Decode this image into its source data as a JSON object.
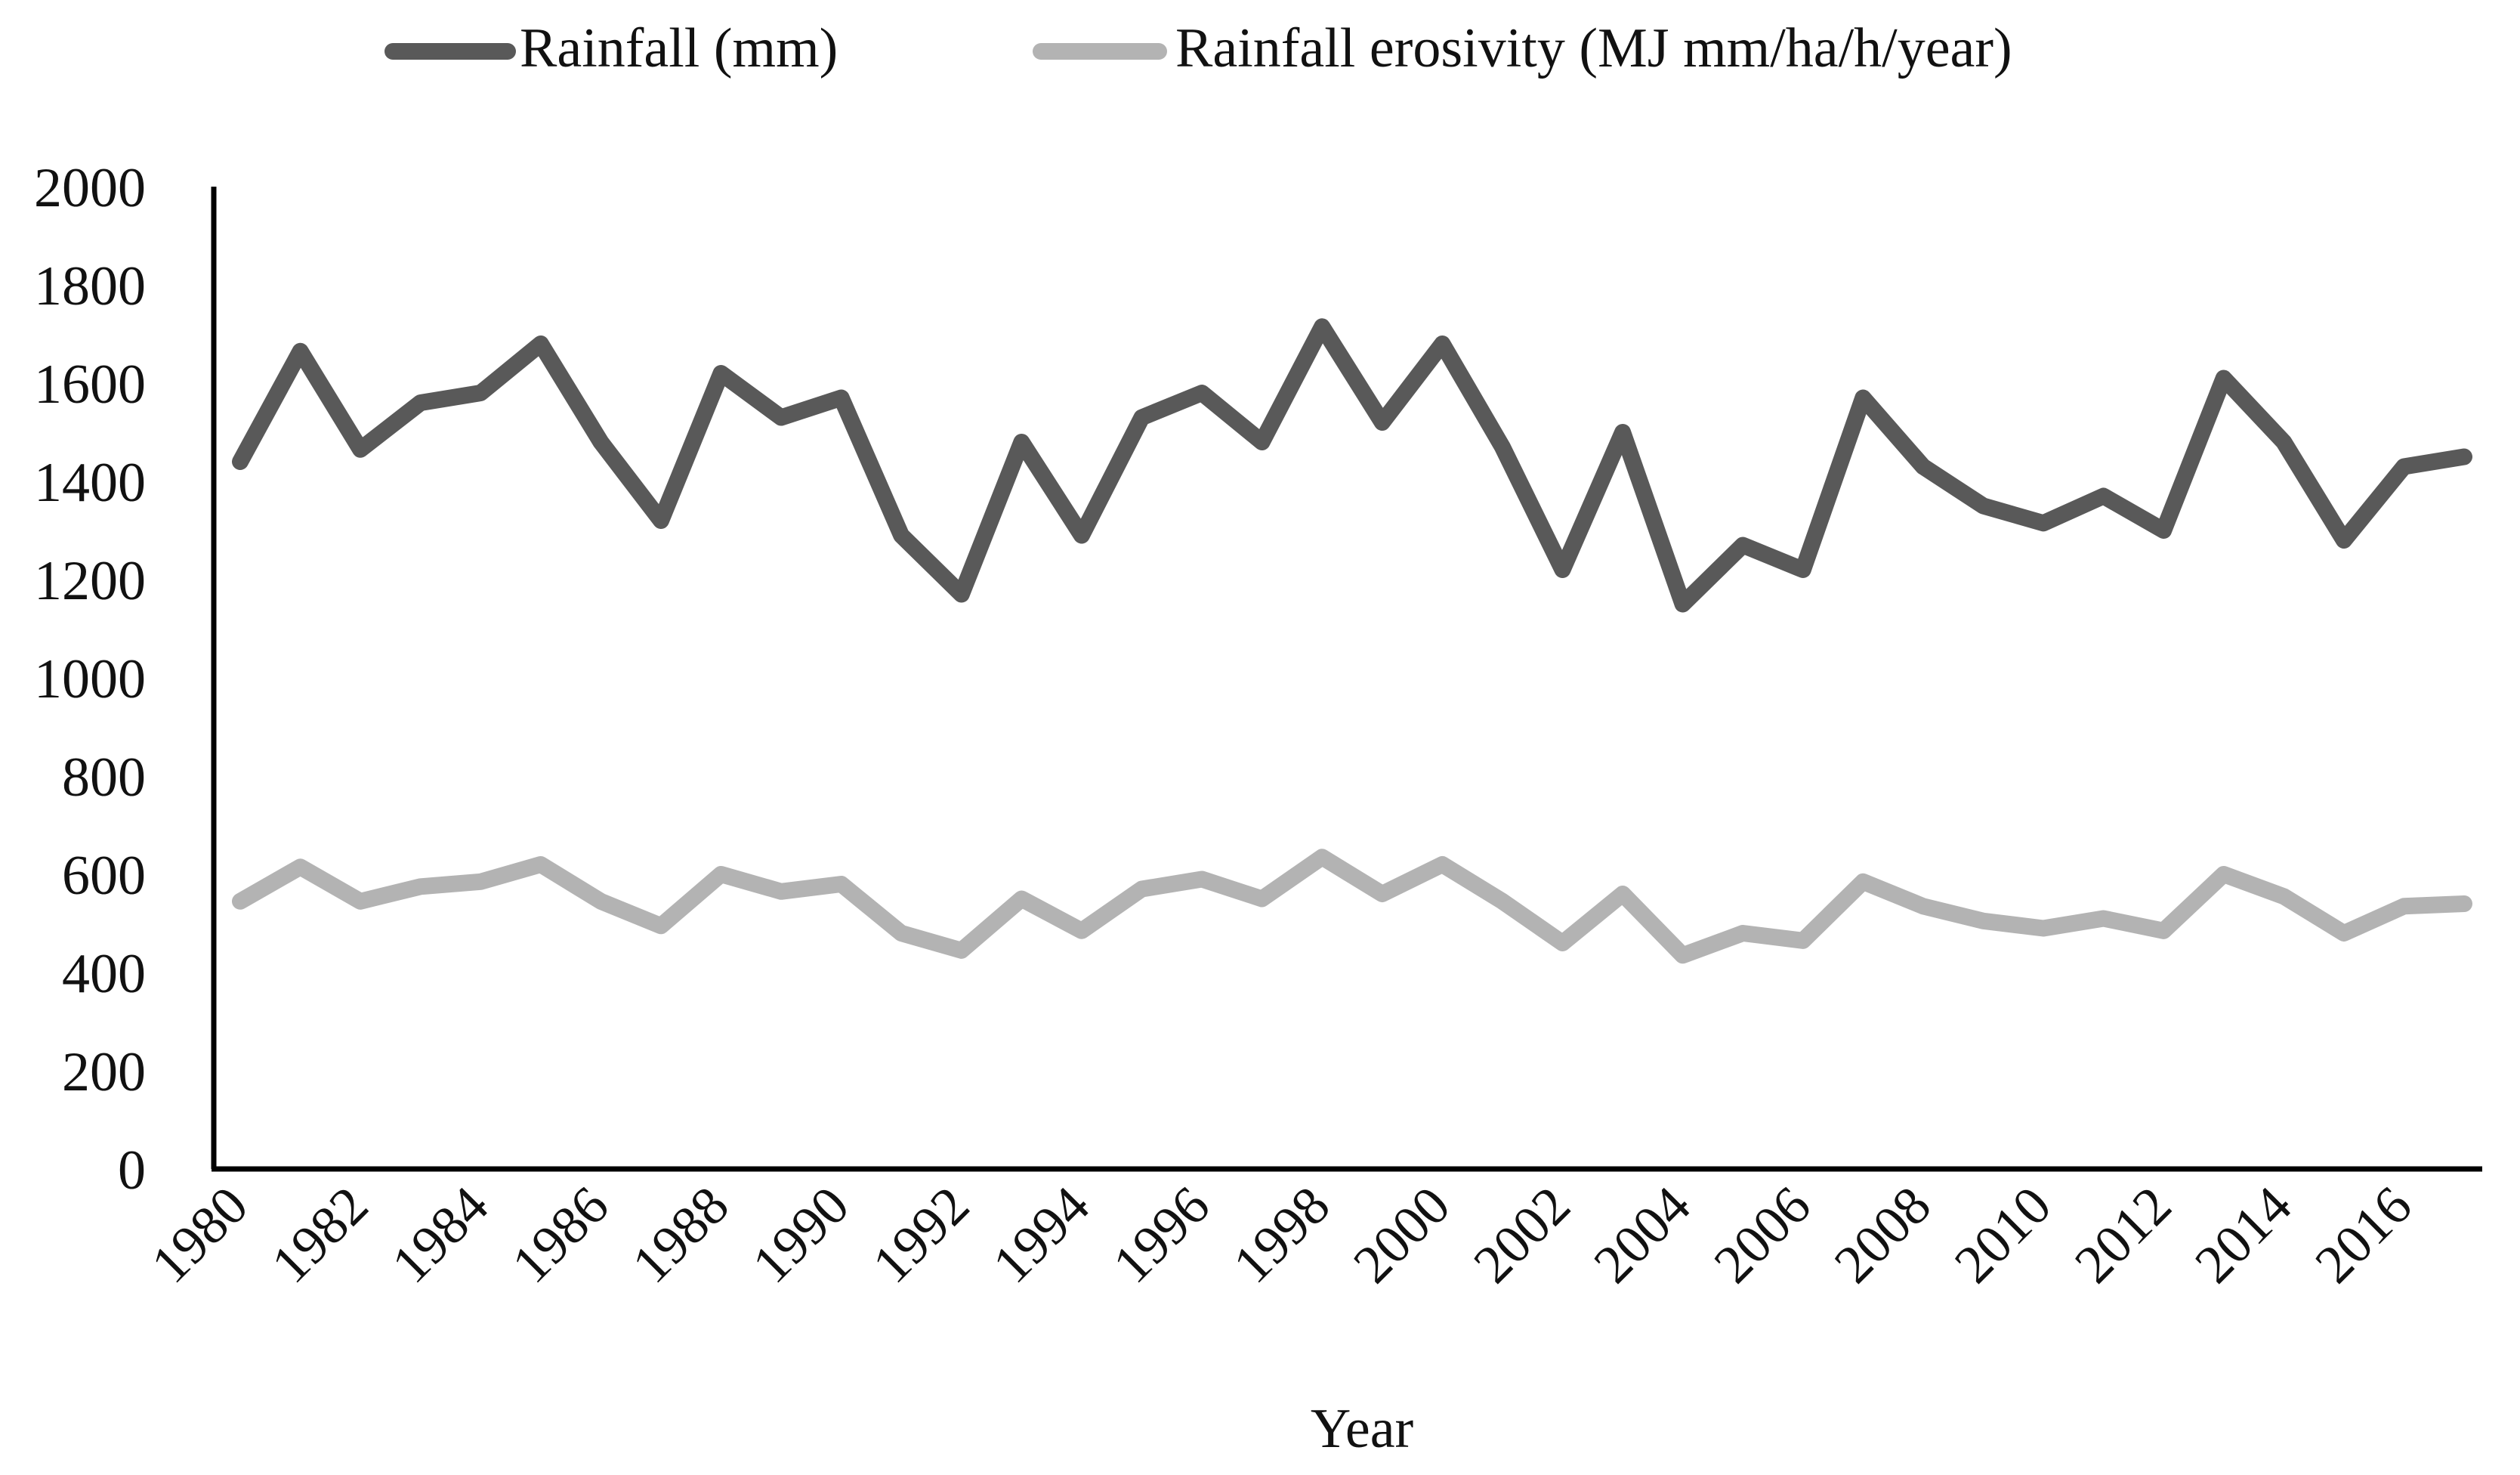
{
  "chart_data": {
    "type": "line",
    "title": "",
    "xlabel": "Year",
    "ylabel": "",
    "ylim": [
      0,
      2000
    ],
    "yticks": [
      0,
      200,
      400,
      600,
      800,
      1000,
      1200,
      1400,
      1600,
      1800,
      2000
    ],
    "x": [
      1980,
      1981,
      1982,
      1983,
      1984,
      1985,
      1986,
      1987,
      1988,
      1989,
      1990,
      1991,
      1992,
      1993,
      1994,
      1995,
      1996,
      1997,
      1998,
      1999,
      2000,
      2001,
      2002,
      2003,
      2004,
      2005,
      2006,
      2007,
      2008,
      2009,
      2010,
      2011,
      2012,
      2013,
      2014,
      2015,
      2016,
      2017
    ],
    "xtick_labels": [
      "1980",
      "1982",
      "1984",
      "1986",
      "1988",
      "1990",
      "1992",
      "1994",
      "1996",
      "1998",
      "2000",
      "2002",
      "2004",
      "2006",
      "2008",
      "2010",
      "2012",
      "2014",
      "2016"
    ],
    "legend_position": "top",
    "grid": false,
    "series": [
      {
        "name": "Rainfall (mm)",
        "color": "#595959",
        "values": [
          1440,
          1665,
          1465,
          1560,
          1580,
          1680,
          1480,
          1320,
          1620,
          1530,
          1570,
          1290,
          1170,
          1480,
          1290,
          1530,
          1580,
          1480,
          1715,
          1520,
          1680,
          1470,
          1220,
          1500,
          1150,
          1270,
          1220,
          1570,
          1430,
          1350,
          1315,
          1370,
          1300,
          1610,
          1480,
          1280,
          1430,
          1450
        ]
      },
      {
        "name": "Rainfall erosivity (MJ mm/ha/h/year)",
        "color": "#b3b3b3",
        "values": [
          545,
          615,
          545,
          575,
          585,
          620,
          545,
          495,
          600,
          565,
          580,
          480,
          445,
          550,
          485,
          570,
          590,
          550,
          635,
          560,
          620,
          545,
          460,
          560,
          435,
          480,
          465,
          585,
          535,
          505,
          490,
          510,
          485,
          600,
          555,
          480,
          535,
          540
        ]
      }
    ]
  }
}
